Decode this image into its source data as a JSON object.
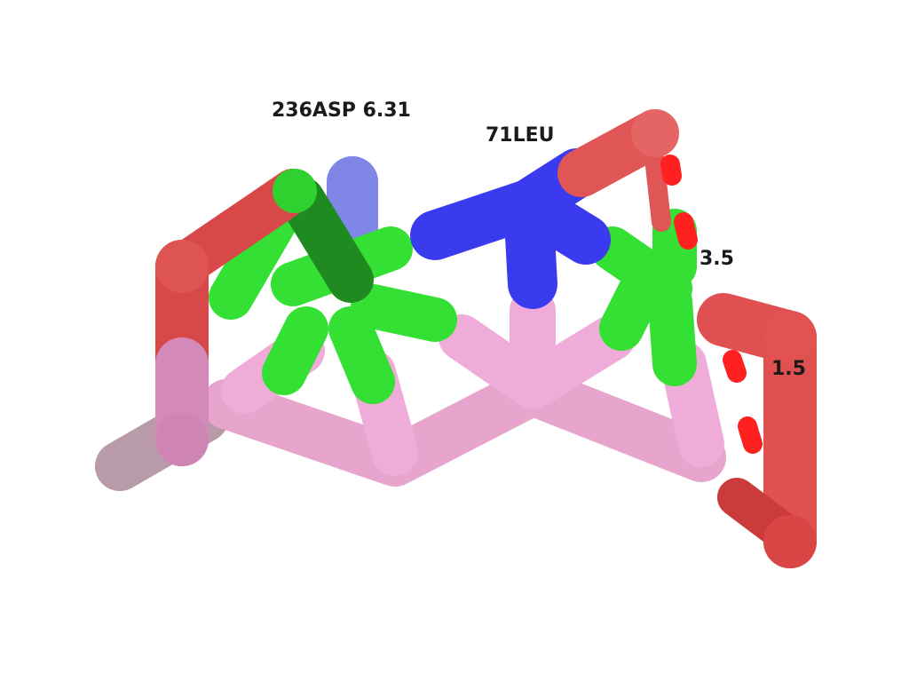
{
  "labels": {
    "residue_asp": "236ASP 6.31",
    "residue_leu": "71LEU",
    "distance_a": "3.5",
    "distance_b": "1.5"
  },
  "colors": {
    "background": "#ffffff",
    "carbon_pink": "#f0a8d8",
    "carbon_green": "#33dd33",
    "nitrogen": "#3333ee",
    "oxygen": "#e04848",
    "oxygen_bright": "#ff1a1a"
  }
}
